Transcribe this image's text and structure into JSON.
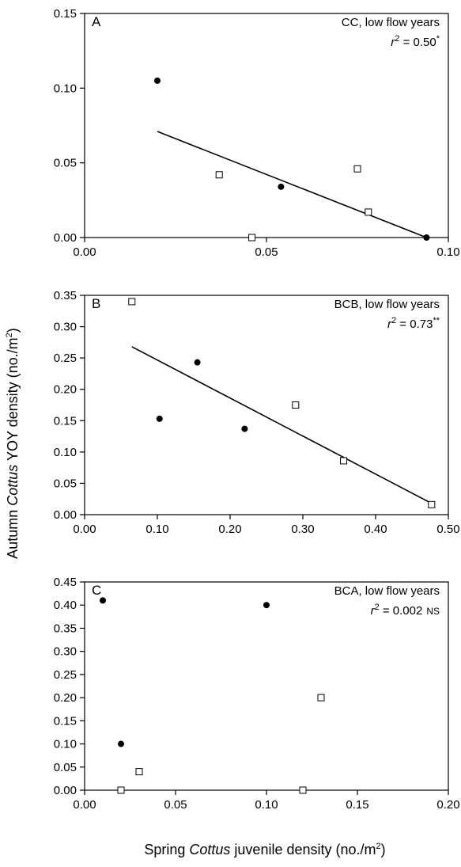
{
  "ylabel": {
    "pre": "Autumn ",
    "italic": "Cottus",
    "post": " YOY density (no./m",
    "sup": "2",
    "end": ")"
  },
  "xlabel": {
    "pre": "Spring ",
    "italic": "Cottus",
    "post": " juvenile density (no./m",
    "sup": "2",
    "end": ")"
  },
  "chart_data": [
    {
      "type": "scatter",
      "panel": "A",
      "site": "CC, low flow years",
      "r2": {
        "prefix": "r",
        "sup": "2",
        "value": " = 0.50",
        "sig": "*"
      },
      "xlim": [
        0,
        0.1
      ],
      "ylim": [
        0,
        0.15
      ],
      "xticks": [
        0.0,
        0.05,
        0.1
      ],
      "xtick_labels": [
        "0.00",
        "0.05",
        "0.10"
      ],
      "yticks": [
        0.0,
        0.05,
        0.1,
        0.15
      ],
      "ytick_labels": [
        "0.00",
        "0.05",
        "0.10",
        "0.15"
      ],
      "filled_points": [
        [
          0.02,
          0.105
        ],
        [
          0.054,
          0.034
        ],
        [
          0.094,
          0.0
        ]
      ],
      "open_points": [
        [
          0.037,
          0.042
        ],
        [
          0.046,
          0.0
        ],
        [
          0.075,
          0.046
        ],
        [
          0.078,
          0.017
        ]
      ],
      "regression": [
        [
          0.02,
          0.071
        ],
        [
          0.094,
          0.0
        ]
      ]
    },
    {
      "type": "scatter",
      "panel": "B",
      "site": "BCB, low flow years",
      "r2": {
        "prefix": "r",
        "sup": "2",
        "value": " = 0.73",
        "sig": "**"
      },
      "xlim": [
        0,
        0.5
      ],
      "ylim": [
        0,
        0.35
      ],
      "xticks": [
        0.0,
        0.1,
        0.2,
        0.3,
        0.4,
        0.5
      ],
      "xtick_labels": [
        "0.00",
        "0.10",
        "0.20",
        "0.30",
        "0.40",
        "0.50"
      ],
      "yticks": [
        0.0,
        0.05,
        0.1,
        0.15,
        0.2,
        0.25,
        0.3,
        0.35
      ],
      "ytick_labels": [
        "0.00",
        "0.05",
        "0.10",
        "0.15",
        "0.20",
        "0.25",
        "0.30",
        "0.35"
      ],
      "filled_points": [
        [
          0.103,
          0.153
        ],
        [
          0.155,
          0.243
        ],
        [
          0.22,
          0.137
        ]
      ],
      "open_points": [
        [
          0.065,
          0.34
        ],
        [
          0.29,
          0.175
        ],
        [
          0.356,
          0.086
        ],
        [
          0.477,
          0.016
        ]
      ],
      "regression": [
        [
          0.065,
          0.268
        ],
        [
          0.477,
          0.018
        ]
      ]
    },
    {
      "type": "scatter",
      "panel": "C",
      "site": "BCA, low flow years",
      "r2": {
        "prefix": "r",
        "sup": "2",
        "value": " = 0.002",
        "sig": "NS"
      },
      "xlim": [
        0,
        0.2
      ],
      "ylim": [
        0,
        0.45
      ],
      "xticks": [
        0.0,
        0.05,
        0.1,
        0.15,
        0.2
      ],
      "xtick_labels": [
        "0.00",
        "0.05",
        "0.10",
        "0.15",
        "0.20"
      ],
      "yticks": [
        0.0,
        0.05,
        0.1,
        0.15,
        0.2,
        0.25,
        0.3,
        0.35,
        0.4,
        0.45
      ],
      "ytick_labels": [
        "0.00",
        "0.05",
        "0.10",
        "0.15",
        "0.20",
        "0.25",
        "0.30",
        "0.35",
        "0.40",
        "0.45"
      ],
      "filled_points": [
        [
          0.01,
          0.41
        ],
        [
          0.02,
          0.1
        ],
        [
          0.1,
          0.4
        ]
      ],
      "open_points": [
        [
          0.02,
          0.0
        ],
        [
          0.03,
          0.04
        ],
        [
          0.12,
          0.0
        ],
        [
          0.13,
          0.2
        ]
      ],
      "regression": []
    }
  ]
}
